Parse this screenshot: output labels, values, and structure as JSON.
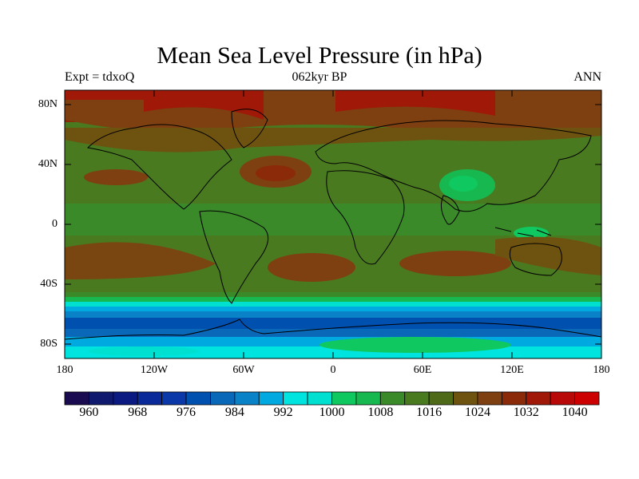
{
  "title": "Mean Sea Level Pressure (in hPa)",
  "subtitle_left": "Expt = tdxoQ",
  "subtitle_center": "062kyr BP",
  "subtitle_right": "ANN",
  "lat_labels": [
    "80N",
    "40N",
    "0",
    "40S",
    "80S"
  ],
  "lon_labels": [
    "180",
    "120W",
    "60W",
    "0",
    "60E",
    "120E",
    "180"
  ],
  "colorbar": {
    "colors": [
      "#1a0a50",
      "#0f1a6e",
      "#0a1a80",
      "#0a2a9a",
      "#0a38a8",
      "#0050b0",
      "#0a68b8",
      "#0a82c8",
      "#00aae0",
      "#00e4e0",
      "#00e0d0",
      "#10c860",
      "#18b850",
      "#3a8a2a",
      "#4a7a20",
      "#4e6a18",
      "#6e5210",
      "#7e4010",
      "#8a2a08",
      "#a01808",
      "#b80808",
      "#cc0000"
    ],
    "tick_labels": [
      "960",
      "968",
      "976",
      "984",
      "992",
      "1000",
      "1008",
      "1016",
      "1024",
      "1032",
      "1040"
    ]
  }
}
